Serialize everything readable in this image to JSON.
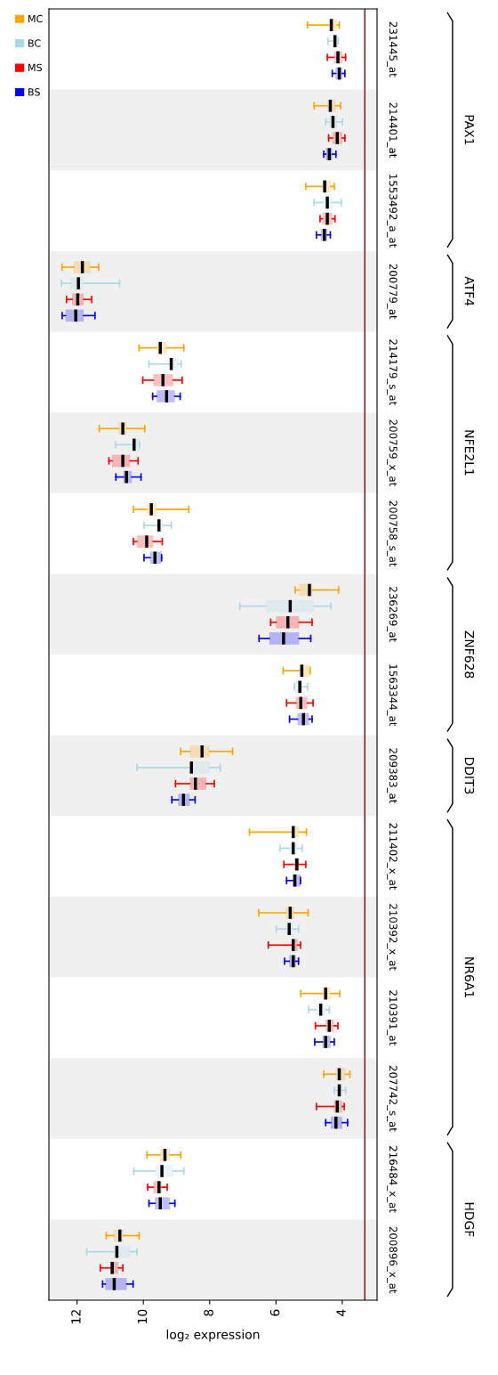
{
  "chart_data": {
    "type": "box",
    "orientation": "horizontal",
    "xlabel": "log₂ expression",
    "categories": [
      "231445_at",
      "214401_at",
      "1553492_a_at",
      "200779_at",
      "214179_s_at",
      "200759_x_at",
      "200758_s_at",
      "236269_at",
      "1563344_at",
      "209383_at",
      "211402_x_at",
      "210392_x_at",
      "210391_at",
      "207742_s_at",
      "216484_x_at",
      "200896_x_at"
    ],
    "xlim": [
      12.85,
      2.95
    ],
    "xticks": [
      12,
      10,
      8,
      6,
      4
    ],
    "grid": false,
    "legend": "top left",
    "ref_lines": [
      {
        "axis": "x",
        "value": 3.32,
        "color": "#8b0000"
      }
    ],
    "annotations": [
      "PAX1",
      "ATF4",
      "NFE2L1",
      "ZNF628",
      "DDIT3",
      "NR6A1",
      "HDGF"
    ],
    "series": [
      {
        "name": "BS",
        "color": "#0000ff",
        "boxes": [
          {
            "low": 3.92,
            "q1": 4.0,
            "median": 4.09,
            "q3": 4.2,
            "high": 4.3
          },
          {
            "low": 4.19,
            "q1": 4.3,
            "median": 4.39,
            "q3": 4.5,
            "high": 4.56
          },
          {
            "low": 4.36,
            "q1": 4.45,
            "median": 4.54,
            "q3": 4.65,
            "high": 4.78
          },
          {
            "low": 11.46,
            "q1": 11.8,
            "median": 12.04,
            "q3": 12.35,
            "high": 12.45
          },
          {
            "low": 8.89,
            "q1": 9.05,
            "median": 9.3,
            "q3": 9.6,
            "high": 9.72
          },
          {
            "low": 10.07,
            "q1": 10.35,
            "median": 10.51,
            "q3": 10.6,
            "high": 10.83
          },
          {
            "low": 9.45,
            "q1": 9.45,
            "median": 9.65,
            "q3": 9.8,
            "high": 9.98
          },
          {
            "low": 4.95,
            "q1": 5.3,
            "median": 5.77,
            "q3": 6.2,
            "high": 6.51
          },
          {
            "low": 4.91,
            "q1": 5.0,
            "median": 5.17,
            "q3": 5.35,
            "high": 5.59
          },
          {
            "low": 8.44,
            "q1": 8.6,
            "median": 8.79,
            "q3": 8.95,
            "high": 9.14
          },
          {
            "low": 5.26,
            "q1": 5.26,
            "median": 5.43,
            "q3": 5.5,
            "high": 5.68
          },
          {
            "low": 5.32,
            "q1": 5.4,
            "median": 5.48,
            "q3": 5.6,
            "high": 5.74
          },
          {
            "low": 4.24,
            "q1": 4.35,
            "median": 4.5,
            "q3": 4.6,
            "high": 4.83
          },
          {
            "low": 3.84,
            "q1": 4.0,
            "median": 4.19,
            "q3": 4.35,
            "high": 4.5
          },
          {
            "low": 9.05,
            "q1": 9.2,
            "median": 9.49,
            "q3": 9.65,
            "high": 9.83
          },
          {
            "low": 10.31,
            "q1": 10.5,
            "median": 10.88,
            "q3": 11.15,
            "high": 11.23
          }
        ]
      },
      {
        "name": "MS",
        "color": "#ff0000",
        "boxes": [
          {
            "low": 3.9,
            "q1": 4.0,
            "median": 4.13,
            "q3": 4.25,
            "high": 4.45
          },
          {
            "low": 3.92,
            "q1": 4.0,
            "median": 4.15,
            "q3": 4.3,
            "high": 4.41
          },
          {
            "low": 4.22,
            "q1": 4.3,
            "median": 4.45,
            "q3": 4.6,
            "high": 4.67
          },
          {
            "low": 11.56,
            "q1": 11.8,
            "median": 11.98,
            "q3": 12.15,
            "high": 12.32
          },
          {
            "low": 8.83,
            "q1": 9.1,
            "median": 9.41,
            "q3": 9.7,
            "high": 10.02
          },
          {
            "low": 10.16,
            "q1": 10.4,
            "median": 10.62,
            "q3": 10.95,
            "high": 11.04
          },
          {
            "low": 9.43,
            "q1": 9.7,
            "median": 9.9,
            "q3": 10.2,
            "high": 10.3
          },
          {
            "low": 4.91,
            "q1": 5.3,
            "median": 5.64,
            "q3": 6.0,
            "high": 6.16
          },
          {
            "low": 4.88,
            "q1": 5.05,
            "median": 5.25,
            "q3": 5.4,
            "high": 5.68
          },
          {
            "low": 7.86,
            "q1": 8.1,
            "median": 8.43,
            "q3": 8.6,
            "high": 9.03
          },
          {
            "low": 5.1,
            "q1": 5.3,
            "median": 5.37,
            "q3": 5.45,
            "high": 5.76
          },
          {
            "low": 5.26,
            "q1": 5.35,
            "median": 5.48,
            "q3": 5.5,
            "high": 6.23
          },
          {
            "low": 4.13,
            "q1": 4.25,
            "median": 4.39,
            "q3": 4.5,
            "high": 4.81
          },
          {
            "low": 3.94,
            "q1": 4.0,
            "median": 4.15,
            "q3": 4.25,
            "high": 4.78
          },
          {
            "low": 9.28,
            "q1": 9.45,
            "median": 9.53,
            "q3": 9.7,
            "high": 9.87
          },
          {
            "low": 10.62,
            "q1": 10.75,
            "median": 10.94,
            "q3": 11.0,
            "high": 11.3
          }
        ]
      },
      {
        "name": "BC",
        "color": "#add8e6",
        "boxes": [
          {
            "low": 4.12,
            "q1": 4.12,
            "median": 4.22,
            "q3": 4.3,
            "high": 4.43
          },
          {
            "low": 3.99,
            "q1": 4.15,
            "median": 4.28,
            "q3": 4.4,
            "high": 4.5
          },
          {
            "low": 4.03,
            "q1": 4.3,
            "median": 4.45,
            "q3": 4.6,
            "high": 4.85
          },
          {
            "low": 10.72,
            "q1": 11.8,
            "median": 11.96,
            "q3": 12.2,
            "high": 12.47
          },
          {
            "low": 8.86,
            "q1": 8.95,
            "median": 9.16,
            "q3": 9.2,
            "high": 9.83
          },
          {
            "low": 10.11,
            "q1": 10.11,
            "median": 10.28,
            "q3": 10.3,
            "high": 10.84
          },
          {
            "low": 9.16,
            "q1": 9.4,
            "median": 9.53,
            "q3": 9.6,
            "high": 9.98
          },
          {
            "low": 4.34,
            "q1": 4.85,
            "median": 5.57,
            "q3": 6.3,
            "high": 7.09
          },
          {
            "low": 5.05,
            "q1": 5.2,
            "median": 5.28,
            "q3": 5.44,
            "high": 5.44
          },
          {
            "low": 7.68,
            "q1": 8.0,
            "median": 8.55,
            "q3": 8.6,
            "high": 10.19
          },
          {
            "low": 5.21,
            "q1": 5.35,
            "median": 5.48,
            "q3": 5.6,
            "high": 5.88
          },
          {
            "low": 5.32,
            "q1": 5.5,
            "median": 5.6,
            "q3": 5.7,
            "high": 5.99
          },
          {
            "low": 4.39,
            "q1": 4.5,
            "median": 4.65,
            "q3": 4.8,
            "high": 5.02
          },
          {
            "low": 3.9,
            "q1": 4.0,
            "median": 4.09,
            "q3": 4.15,
            "high": 4.24
          },
          {
            "low": 8.78,
            "q1": 9.1,
            "median": 9.44,
            "q3": 9.65,
            "high": 10.29
          },
          {
            "low": 10.19,
            "q1": 10.4,
            "median": 10.8,
            "q3": 10.9,
            "high": 11.71
          }
        ]
      },
      {
        "name": "MC",
        "color": "#ffa500",
        "boxes": [
          {
            "low": 4.09,
            "q1": 4.15,
            "median": 4.33,
            "q3": 4.4,
            "high": 5.05
          },
          {
            "low": 4.05,
            "q1": 4.2,
            "median": 4.36,
            "q3": 4.45,
            "high": 4.85
          },
          {
            "low": 4.24,
            "q1": 4.35,
            "median": 4.53,
            "q3": 4.6,
            "high": 5.1
          },
          {
            "low": 11.35,
            "q1": 11.6,
            "median": 11.84,
            "q3": 12.1,
            "high": 12.45
          },
          {
            "low": 8.78,
            "q1": 9.3,
            "median": 9.49,
            "q3": 9.6,
            "high": 10.13
          },
          {
            "low": 9.96,
            "q1": 10.5,
            "median": 10.62,
            "q3": 10.75,
            "high": 11.33
          },
          {
            "low": 8.63,
            "q1": 9.6,
            "median": 9.76,
            "q3": 9.9,
            "high": 10.3
          },
          {
            "low": 4.11,
            "q1": 4.9,
            "median": 4.99,
            "q3": 5.3,
            "high": 5.42
          },
          {
            "low": 4.97,
            "q1": 4.97,
            "median": 5.22,
            "q3": 5.3,
            "high": 5.78
          },
          {
            "low": 7.31,
            "q1": 8.0,
            "median": 8.23,
            "q3": 8.6,
            "high": 8.88
          },
          {
            "low": 5.08,
            "q1": 5.3,
            "median": 5.48,
            "q3": 5.5,
            "high": 6.8
          },
          {
            "low": 5.03,
            "q1": 5.45,
            "median": 5.57,
            "q3": 5.7,
            "high": 6.52
          },
          {
            "low": 4.08,
            "q1": 4.35,
            "median": 4.5,
            "q3": 4.6,
            "high": 5.25
          },
          {
            "low": 3.77,
            "q1": 3.9,
            "median": 4.09,
            "q3": 4.2,
            "high": 4.56
          },
          {
            "low": 8.87,
            "q1": 9.2,
            "median": 9.35,
            "q3": 9.5,
            "high": 9.89
          },
          {
            "low": 10.13,
            "q1": 10.6,
            "median": 10.71,
            "q3": 10.9,
            "high": 11.12
          }
        ]
      }
    ]
  }
}
